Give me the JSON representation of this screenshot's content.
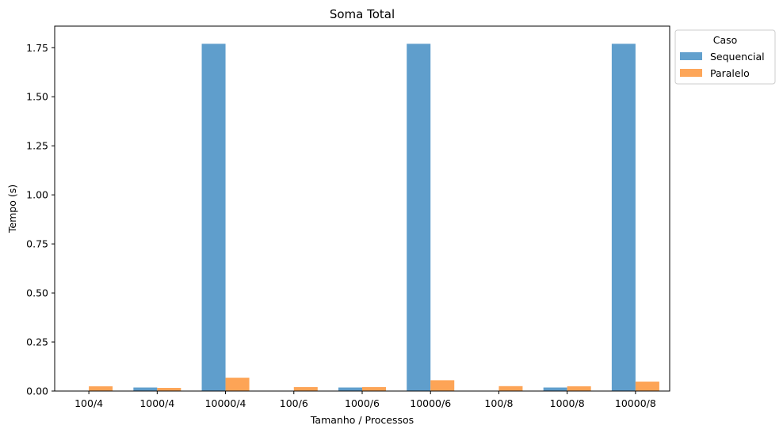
{
  "chart_data": {
    "type": "bar",
    "title": "Soma Total",
    "xlabel": "Tamanho / Processos",
    "ylabel": "Tempo (s)",
    "categories": [
      "100/4",
      "1000/4",
      "10000/4",
      "100/6",
      "1000/6",
      "10000/6",
      "100/8",
      "1000/8",
      "10000/8"
    ],
    "series": [
      {
        "name": "Sequencial",
        "color": "#5f9ecc",
        "values": [
          0.0002,
          0.018,
          1.77,
          0.0002,
          0.018,
          1.77,
          0.0002,
          0.018,
          1.77
        ]
      },
      {
        "name": "Paralelo",
        "color": "#fda456",
        "values": [
          0.024,
          0.016,
          0.068,
          0.02,
          0.02,
          0.055,
          0.025,
          0.024,
          0.048
        ]
      }
    ],
    "ylim": [
      0,
      1.86
    ],
    "yticks": [
      "0.00",
      "0.25",
      "0.50",
      "0.75",
      "1.00",
      "1.25",
      "1.50",
      "1.75"
    ],
    "legend": {
      "title": "Caso",
      "placement": "outside-upper-right"
    },
    "grid": false
  }
}
